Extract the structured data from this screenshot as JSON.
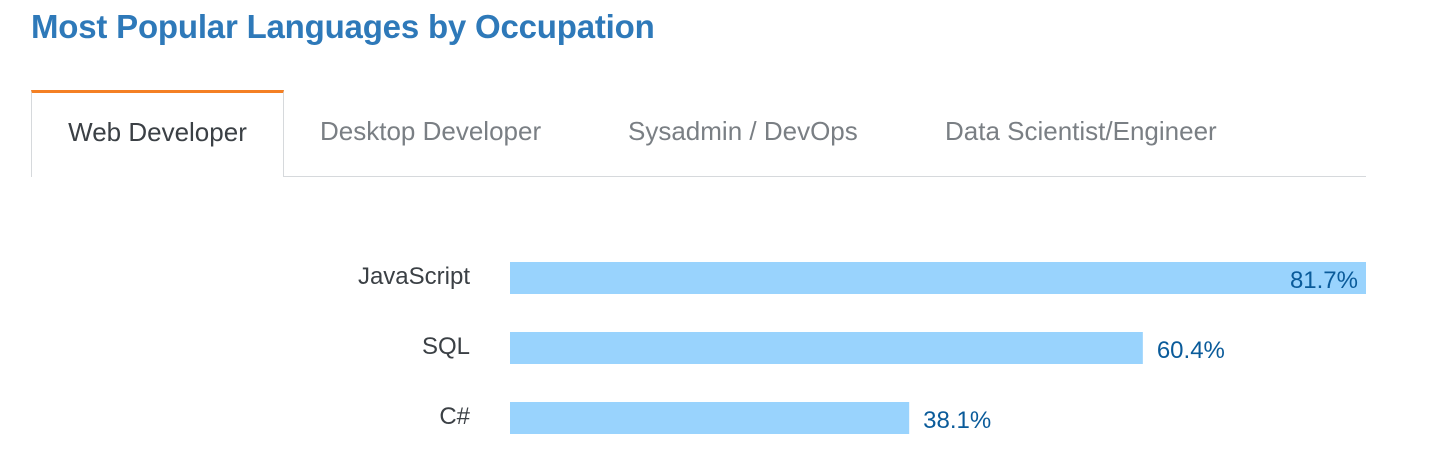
{
  "title": "Most Popular Languages by Occupation",
  "tabs": [
    {
      "label": "Web Developer",
      "active": true
    },
    {
      "label": "Desktop Developer",
      "active": false
    },
    {
      "label": "Sysadmin / DevOps",
      "active": false
    },
    {
      "label": "Data Scientist/Engineer",
      "active": false
    }
  ],
  "colors": {
    "title": "#2e79b9",
    "tab_active_border": "#f48024",
    "bar": "#99d3fd",
    "value_text": "#0a5b9a"
  },
  "chart_data": {
    "type": "bar",
    "orientation": "horizontal",
    "categories": [
      "JavaScript",
      "SQL",
      "C#"
    ],
    "values": [
      81.7,
      60.4,
      38.1
    ],
    "value_labels": [
      "81.7%",
      "60.4%",
      "38.1%"
    ],
    "unit": "%",
    "xlim": [
      0,
      81.7
    ],
    "grid": false,
    "legend": "none"
  }
}
